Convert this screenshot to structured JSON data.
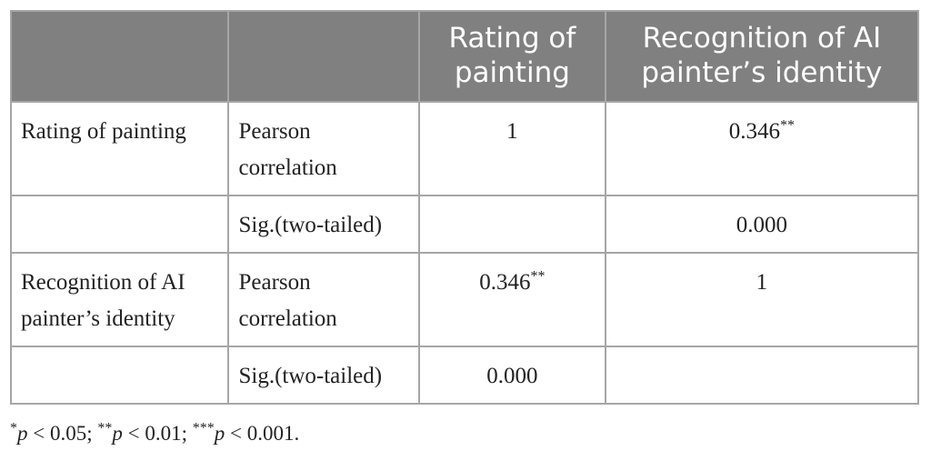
{
  "table": {
    "header": [
      null,
      null,
      "Rating of painting",
      "Recognition of AI painter’s identity"
    ],
    "rows": [
      [
        "Rating of painting",
        "Pearson correlation",
        {
          "text": "1"
        },
        {
          "text": "0.346",
          "sup": "**"
        }
      ],
      [
        null,
        "Sig.(two-tailed)",
        null,
        {
          "text": "0.000"
        }
      ],
      [
        "Recognition of AI painter’s identity",
        "Pearson correlation",
        {
          "text": "0.346",
          "sup": "**"
        },
        {
          "text": "1"
        }
      ],
      [
        null,
        "Sig.(two-tailed)",
        {
          "text": "0.000"
        },
        null
      ]
    ]
  },
  "footnote": [
    {
      "sup": "*",
      "italic": "p",
      "text": " < 0.05;"
    },
    {
      "sup": "**",
      "italic": "p",
      "text": " < 0.01;"
    },
    {
      "sup": "***",
      "italic": "p",
      "text": " < 0.001."
    }
  ]
}
